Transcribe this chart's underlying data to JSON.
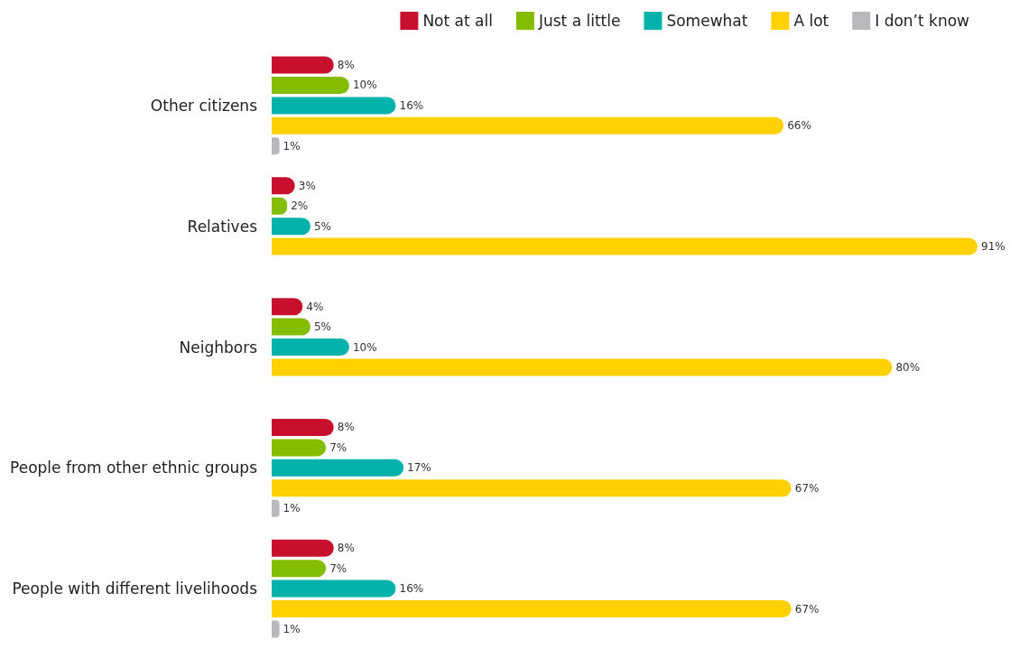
{
  "chart_data": {
    "type": "bar",
    "orientation": "horizontal",
    "categories": [
      "Other citizens",
      "Relatives",
      "Neighbors",
      "People from other ethnic groups",
      "People with different livelihoods"
    ],
    "series": [
      {
        "name": "Not at all",
        "color": "#c8102e",
        "values": [
          8,
          3,
          4,
          8,
          8
        ],
        "value_labels": [
          "8%",
          "3%",
          "4%",
          "8%",
          "8%"
        ]
      },
      {
        "name": "Just a little",
        "color": "#84bd00",
        "values": [
          10,
          2,
          5,
          7,
          7
        ],
        "value_labels": [
          "10%",
          "2%",
          "5%",
          "7%",
          "7%"
        ]
      },
      {
        "name": "Somewhat",
        "color": "#00b2a9",
        "values": [
          16,
          5,
          10,
          17,
          16
        ],
        "value_labels": [
          "16%",
          "5%",
          "10%",
          "17%",
          "16%"
        ]
      },
      {
        "name": "A lot",
        "color": "#ffd100",
        "values": [
          66,
          91,
          80,
          67,
          67
        ],
        "value_labels": [
          "66%",
          "91%",
          "80%",
          "67%",
          "67%"
        ]
      },
      {
        "name": "I don’t know",
        "color": "#b9b9bd",
        "values": [
          1,
          null,
          null,
          1,
          1
        ],
        "value_labels": [
          "1%",
          null,
          null,
          "1%",
          "1%"
        ]
      }
    ],
    "legend": "top right"
  }
}
